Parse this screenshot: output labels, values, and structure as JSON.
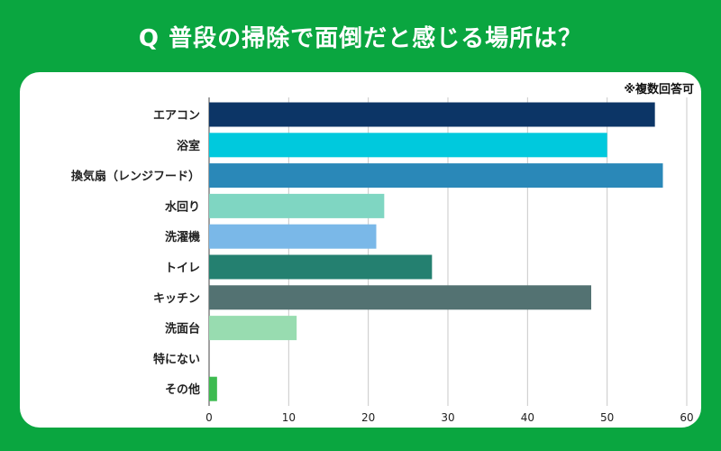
{
  "title": "Q 普段の掃除で面倒だと感じる場所は？",
  "note": "※複数回答可",
  "chart_data": {
    "type": "bar",
    "orientation": "horizontal",
    "categories": [
      "エアコン",
      "浴室",
      "換気扇（レンジフード）",
      "水回り",
      "洗濯機",
      "トイレ",
      "キッチン",
      "洗面台",
      "特にない",
      "その他"
    ],
    "values": [
      56,
      50,
      57,
      22,
      21,
      28,
      48,
      11,
      0,
      1
    ],
    "colors": [
      "#0c3566",
      "#00c9dd",
      "#2a88b8",
      "#7fd6c2",
      "#7ab8e8",
      "#248070",
      "#537272",
      "#98dcb0",
      "#1fb24a",
      "#3dbb50"
    ],
    "xlim": [
      0,
      60
    ],
    "xticks": [
      0,
      10,
      20,
      30,
      40,
      50,
      60
    ],
    "grid": true
  }
}
